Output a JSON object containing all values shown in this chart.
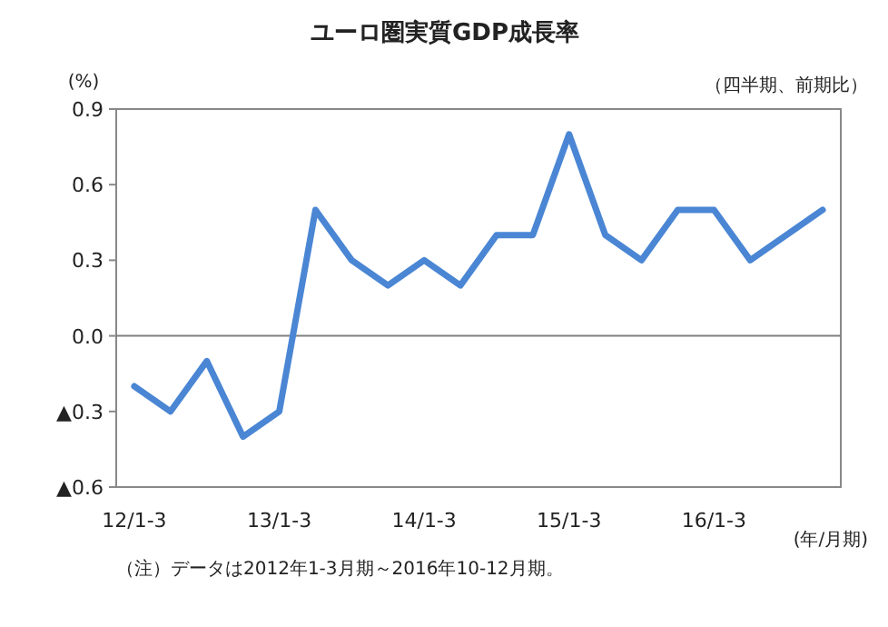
{
  "chart_data": {
    "type": "line",
    "title": "ユーロ圏実質GDP成長率",
    "subtitle": "（四半期、前期比）",
    "ylabel": "(%)",
    "xlabel": "(年/月期)",
    "categories": [
      "12/1-3",
      null,
      null,
      null,
      "13/1-3",
      null,
      null,
      null,
      "14/1-3",
      null,
      null,
      null,
      "15/1-3",
      null,
      null,
      null,
      "16/1-3",
      null,
      null,
      null
    ],
    "series": [
      {
        "color": "#4a86d4",
        "values": [
          -0.2,
          -0.3,
          -0.1,
          -0.4,
          -0.3,
          0.5,
          0.3,
          0.2,
          0.3,
          0.2,
          0.4,
          0.4,
          0.8,
          0.4,
          0.3,
          0.5,
          0.5,
          0.3,
          0.4,
          0.5
        ]
      }
    ],
    "ylim": [
      -0.6,
      0.9
    ],
    "yticks": [
      {
        "value": -0.6,
        "label": "▲0.6"
      },
      {
        "value": -0.3,
        "label": "▲0.3"
      },
      {
        "value": 0,
        "label": "0.0"
      },
      {
        "value": 0.3,
        "label": "0.3"
      },
      {
        "value": 0.6,
        "label": "0.6"
      },
      {
        "value": 0.9,
        "label": "0.9"
      }
    ],
    "ref_lines": [
      {
        "axis": "y",
        "value": 0,
        "color": "#808080"
      }
    ],
    "grid": false,
    "marker": "none",
    "line_style": "solid",
    "annotations": [
      "（注）データは2012年1-3月期～2016年10-12月期。"
    ]
  }
}
